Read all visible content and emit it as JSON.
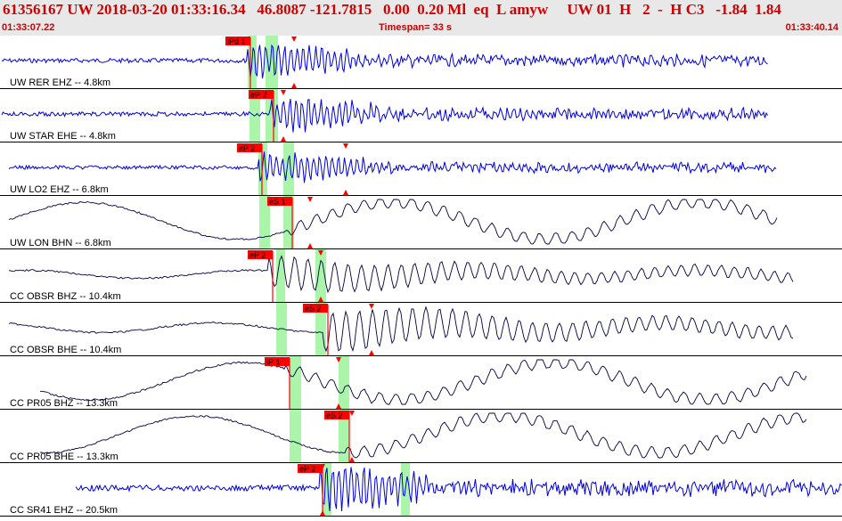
{
  "header": {
    "event_line": "61356167 UW 2018-03-20 01:33:16.34   46.8087 -121.7815   0.00  0.20 Ml  eq  L amyw     UW 01  H   2  -  H C3   -1.84  1.84",
    "start_time": "01:33:07.22",
    "timespan": "Timespan=  33 s",
    "end_time": "01:33:40.14"
  },
  "colors": {
    "header_bg": "#e8e8e8",
    "header_text": "#d00000",
    "pick": "#ff0000",
    "window": "#aaf5aa",
    "trace_short_period": "#0000dd",
    "trace_broadband": "#000040"
  },
  "traces": [
    {
      "label": "UW RER EHZ -- 4.8km",
      "pick": "iPd 1",
      "color": "blue",
      "wave": "sp"
    },
    {
      "label": "UW STAR EHE -- 4.8km",
      "pick": "eP 2",
      "color": "blue",
      "wave": "sp"
    },
    {
      "label": "UW LO2 EHZ -- 6.8km",
      "pick": "eP 2",
      "color": "blue",
      "wave": "sp"
    },
    {
      "label": "UW LON BHN -- 6.8km",
      "pick": "eS 1",
      "color": "dark",
      "wave": "long"
    },
    {
      "label": "CC OBSR BHZ -- 10.4km",
      "pick": "eP 2",
      "color": "dark",
      "wave": "mid"
    },
    {
      "label": "CC OBSR BHE -- 10.4km",
      "pick": "eS 2",
      "color": "dark",
      "wave": "mid"
    },
    {
      "label": "CC PR05 BHZ -- 13.3km",
      "pick": "iP 1",
      "color": "dark",
      "wave": "long"
    },
    {
      "label": "CC PR05 BHE -- 13.3km",
      "pick": "eS 2",
      "color": "dark",
      "wave": "long"
    },
    {
      "label": "CC SR41 EHZ -- 20.5km",
      "pick": "eP 2",
      "color": "blue",
      "wave": "sp"
    }
  ]
}
